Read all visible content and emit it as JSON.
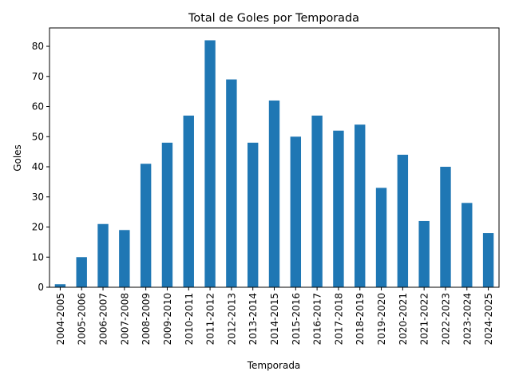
{
  "chart_data": {
    "type": "bar",
    "title": "Total de Goles por Temporada",
    "xlabel": "Temporada",
    "ylabel": "Goles",
    "categories": [
      "2004-2005",
      "2005-2006",
      "2006-2007",
      "2007-2008",
      "2008-2009",
      "2009-2010",
      "2010-2011",
      "2011-2012",
      "2012-2013",
      "2013-2014",
      "2014-2015",
      "2015-2016",
      "2016-2017",
      "2017-2018",
      "2018-2019",
      "2019-2020",
      "2020-2021",
      "2021-2022",
      "2022-2023",
      "2023-2024",
      "2024-2025"
    ],
    "values": [
      1,
      10,
      21,
      19,
      41,
      48,
      57,
      82,
      69,
      48,
      62,
      50,
      57,
      52,
      54,
      33,
      44,
      22,
      40,
      28,
      18
    ],
    "ylim": [
      0,
      86.1
    ],
    "yticks": [
      0,
      10,
      20,
      30,
      40,
      50,
      60,
      70,
      80
    ],
    "bar_color": "#1f77b4",
    "grid": false,
    "legend": "none"
  }
}
